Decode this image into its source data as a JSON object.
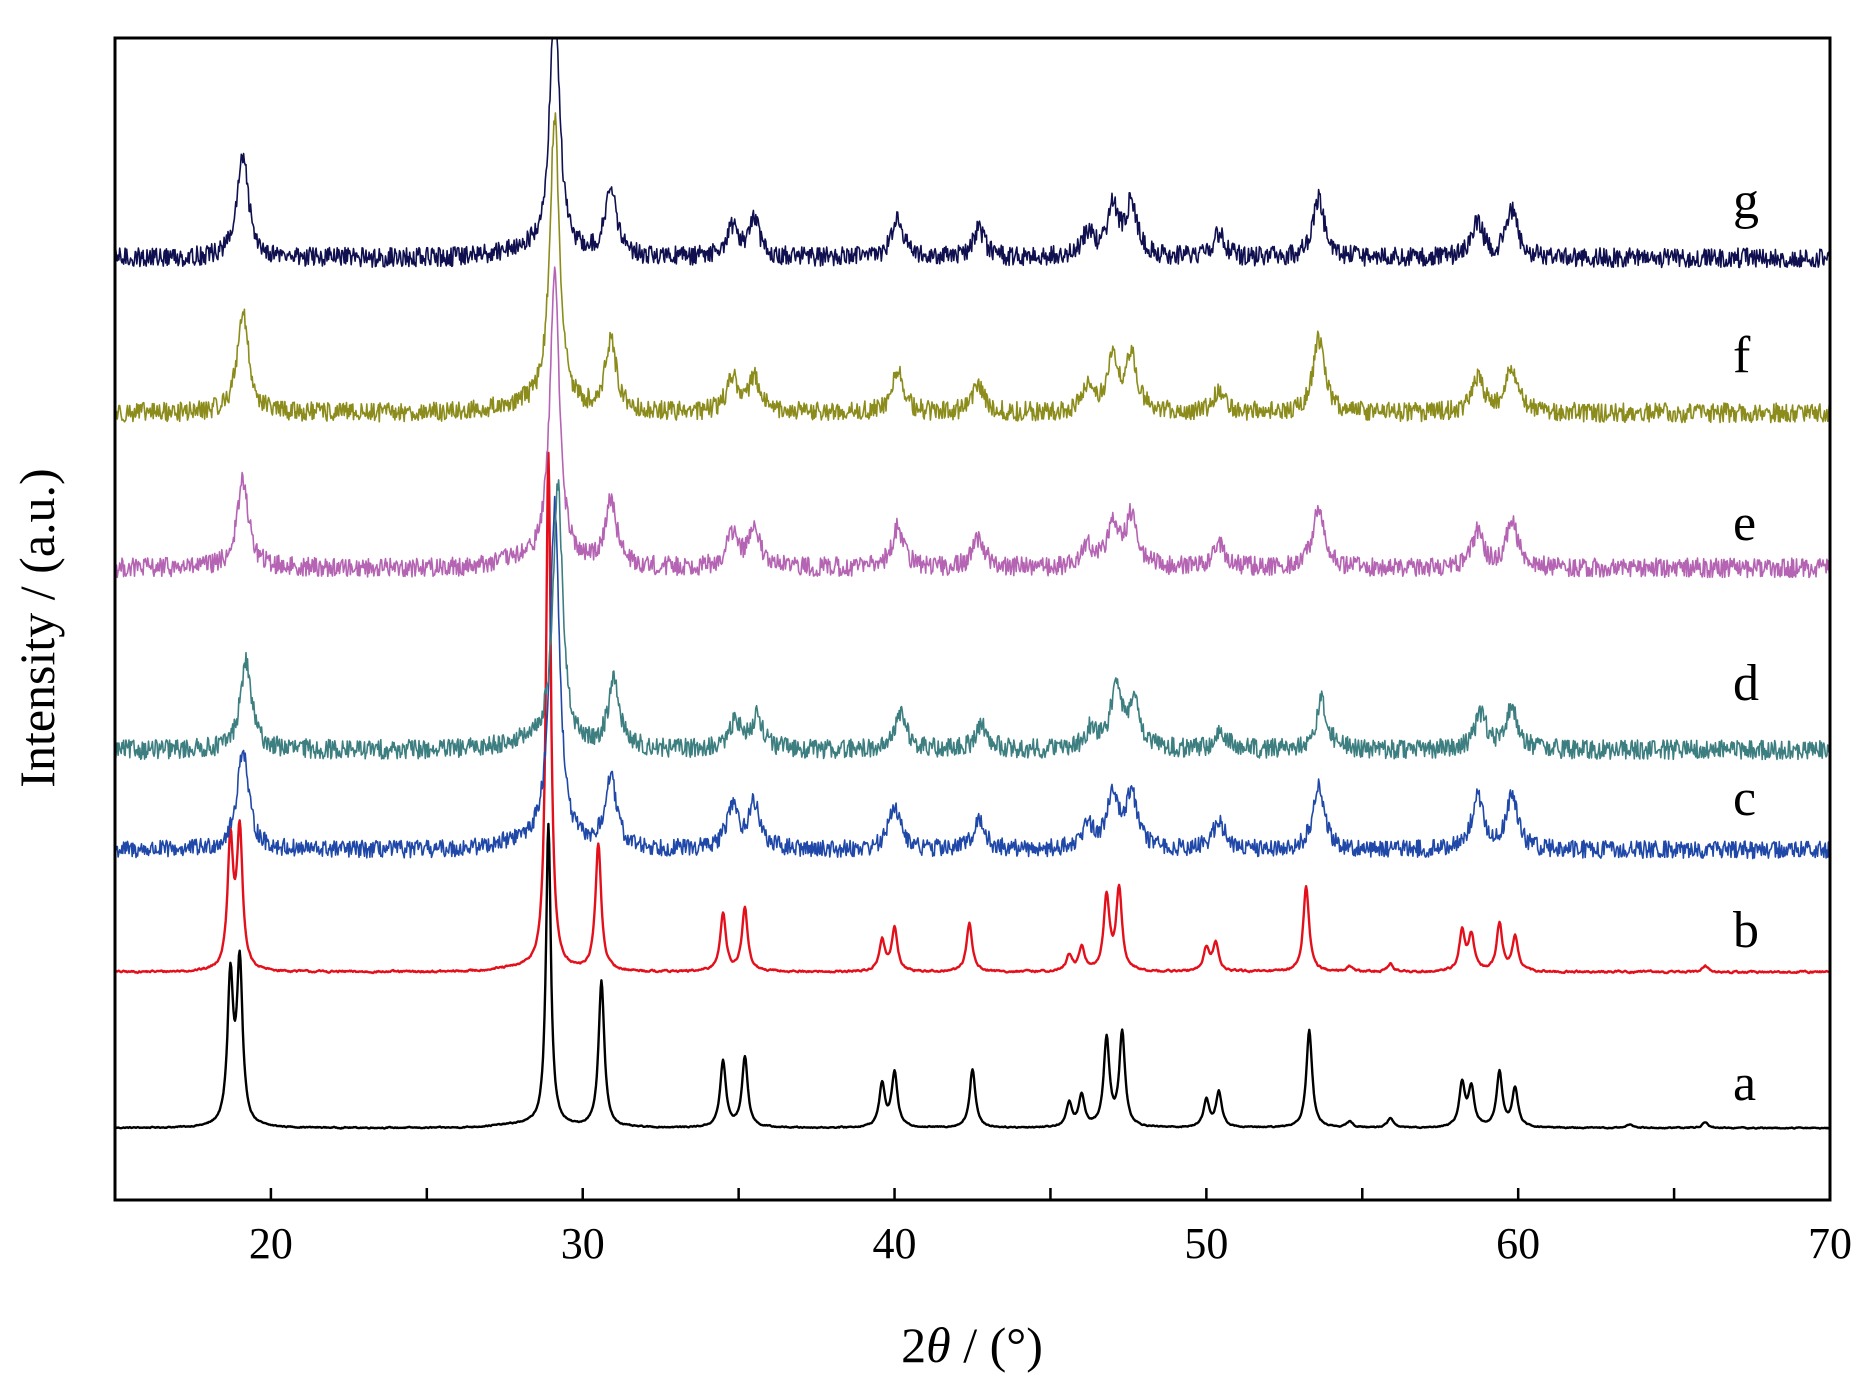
{
  "chart_data": {
    "type": "line",
    "title": "",
    "xlabel_prefix": "2",
    "xlabel_symbol": "θ",
    "xlabel_suffix": " / (°)",
    "ylabel": "Intensity / (a.u.)",
    "xlim": [
      15,
      70
    ],
    "xticks": [
      20,
      30,
      40,
      50,
      60,
      70
    ],
    "yticks_shown": false,
    "stacked_offsets": true,
    "peaks": {
      "a": [
        [
          18.7,
          0.75
        ],
        [
          19.0,
          0.82
        ],
        [
          28.9,
          1.55
        ],
        [
          30.6,
          0.75
        ],
        [
          34.5,
          0.34
        ],
        [
          35.2,
          0.36
        ],
        [
          39.6,
          0.22
        ],
        [
          40.0,
          0.28
        ],
        [
          42.5,
          0.3
        ],
        [
          45.6,
          0.12
        ],
        [
          46.0,
          0.16
        ],
        [
          46.8,
          0.45
        ],
        [
          47.3,
          0.48
        ],
        [
          50.0,
          0.14
        ],
        [
          50.4,
          0.18
        ],
        [
          53.3,
          0.5
        ],
        [
          54.6,
          0.03
        ],
        [
          55.9,
          0.05
        ],
        [
          58.2,
          0.22
        ],
        [
          58.5,
          0.2
        ],
        [
          59.4,
          0.28
        ],
        [
          59.9,
          0.2
        ],
        [
          63.6,
          0.02
        ],
        [
          66.0,
          0.03
        ]
      ],
      "b": [
        [
          18.7,
          0.65
        ],
        [
          19.0,
          0.7
        ],
        [
          28.9,
          2.65
        ],
        [
          30.5,
          0.65
        ],
        [
          34.5,
          0.3
        ],
        [
          35.2,
          0.32
        ],
        [
          39.6,
          0.16
        ],
        [
          40.0,
          0.22
        ],
        [
          42.4,
          0.25
        ],
        [
          45.6,
          0.08
        ],
        [
          46.0,
          0.12
        ],
        [
          46.8,
          0.38
        ],
        [
          47.2,
          0.42
        ],
        [
          50.0,
          0.12
        ],
        [
          50.3,
          0.14
        ],
        [
          53.2,
          0.44
        ],
        [
          54.6,
          0.03
        ],
        [
          55.9,
          0.04
        ],
        [
          58.2,
          0.2
        ],
        [
          58.5,
          0.18
        ],
        [
          59.4,
          0.24
        ],
        [
          59.9,
          0.18
        ],
        [
          66.0,
          0.03
        ]
      ],
      "c": [
        [
          19.1,
          0.52
        ],
        [
          29.1,
          1.75
        ],
        [
          30.9,
          0.36
        ],
        [
          34.8,
          0.22
        ],
        [
          35.5,
          0.23
        ],
        [
          40.0,
          0.23
        ],
        [
          42.7,
          0.15
        ],
        [
          46.2,
          0.12
        ],
        [
          47.0,
          0.28
        ],
        [
          47.6,
          0.28
        ],
        [
          50.4,
          0.15
        ],
        [
          53.6,
          0.32
        ],
        [
          58.7,
          0.27
        ],
        [
          59.8,
          0.27
        ]
      ],
      "d": [
        [
          19.2,
          0.45
        ],
        [
          29.2,
          1.35
        ],
        [
          31.0,
          0.35
        ],
        [
          34.9,
          0.14
        ],
        [
          35.6,
          0.17
        ],
        [
          40.2,
          0.19
        ],
        [
          42.8,
          0.13
        ],
        [
          46.3,
          0.1
        ],
        [
          47.1,
          0.3
        ],
        [
          47.7,
          0.23
        ],
        [
          50.5,
          0.09
        ],
        [
          53.7,
          0.25
        ],
        [
          58.8,
          0.18
        ],
        [
          59.8,
          0.22
        ]
      ],
      "e": [
        [
          19.1,
          0.45
        ],
        [
          29.1,
          1.5
        ],
        [
          30.9,
          0.35
        ],
        [
          34.8,
          0.17
        ],
        [
          35.5,
          0.19
        ],
        [
          40.1,
          0.21
        ],
        [
          42.7,
          0.15
        ],
        [
          46.2,
          0.1
        ],
        [
          47.0,
          0.22
        ],
        [
          47.6,
          0.26
        ],
        [
          50.4,
          0.12
        ],
        [
          53.6,
          0.3
        ],
        [
          58.7,
          0.18
        ],
        [
          59.8,
          0.24
        ]
      ],
      "f": [
        [
          19.1,
          0.52
        ],
        [
          29.1,
          1.5
        ],
        [
          30.9,
          0.36
        ],
        [
          34.8,
          0.18
        ],
        [
          35.5,
          0.17
        ],
        [
          40.1,
          0.22
        ],
        [
          42.7,
          0.14
        ],
        [
          46.2,
          0.12
        ],
        [
          47.0,
          0.25
        ],
        [
          47.6,
          0.28
        ],
        [
          50.4,
          0.11
        ],
        [
          53.6,
          0.38
        ],
        [
          58.7,
          0.18
        ],
        [
          59.8,
          0.24
        ]
      ],
      "g": [
        [
          19.1,
          0.52
        ],
        [
          29.1,
          1.35
        ],
        [
          30.9,
          0.35
        ],
        [
          34.8,
          0.15
        ],
        [
          35.5,
          0.18
        ],
        [
          40.1,
          0.2
        ],
        [
          42.7,
          0.15
        ],
        [
          46.2,
          0.12
        ],
        [
          47.0,
          0.25
        ],
        [
          47.6,
          0.27
        ],
        [
          50.4,
          0.12
        ],
        [
          53.6,
          0.3
        ],
        [
          58.7,
          0.18
        ],
        [
          59.8,
          0.24
        ]
      ]
    },
    "series": [
      {
        "name": "a",
        "color": "#000000",
        "noise": 0.006,
        "broad": false
      },
      {
        "name": "b",
        "color": "#e3101b",
        "noise": 0.01,
        "broad": false
      },
      {
        "name": "c",
        "color": "#1f48a8",
        "noise": 0.045,
        "broad": true
      },
      {
        "name": "d",
        "color": "#3d7e80",
        "noise": 0.05,
        "broad": true
      },
      {
        "name": "e",
        "color": "#b564b3",
        "noise": 0.05,
        "broad": true
      },
      {
        "name": "f",
        "color": "#8c8c1c",
        "noise": 0.05,
        "broad": true
      },
      {
        "name": "g",
        "color": "#101050",
        "noise": 0.05,
        "broad": true
      }
    ]
  }
}
